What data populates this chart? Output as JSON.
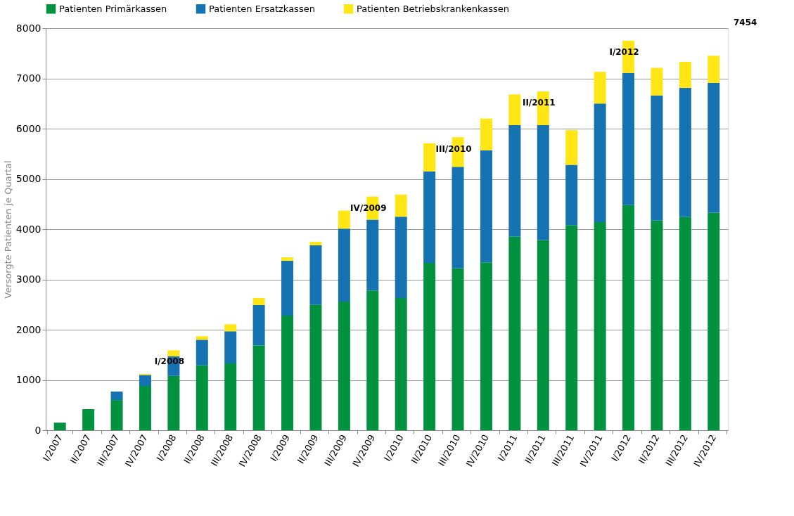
{
  "chart_data": {
    "type": "bar",
    "stacked": true,
    "ylabel": "Versorgte Patienten je Quartal",
    "categories": [
      "I/2007",
      "II/2007",
      "III/2007",
      "IV/2007",
      "I/2008",
      "II/2008",
      "III/2008",
      "IV/2008",
      "I/2009",
      "II/2009",
      "III/2009",
      "IV/2009",
      "I/2010",
      "II/2010",
      "III/2010",
      "IV/2010",
      "I/2011",
      "II/2011",
      "III/2011",
      "IV/2011",
      "I/2012",
      "II/2012",
      "III/2012",
      "IV/2012"
    ],
    "series": [
      {
        "name": "Patienten Primärkassen",
        "color": "#00923f",
        "values": [
          150,
          420,
          600,
          880,
          1080,
          1290,
          1330,
          1690,
          2280,
          2500,
          2560,
          2780,
          2630,
          3330,
          3220,
          3340,
          3850,
          3780,
          4080,
          4140,
          4480,
          4170,
          4240,
          4330
        ]
      },
      {
        "name": "Patienten Ersatzkassen",
        "color": "#1473b0",
        "values": [
          null,
          null,
          170,
          220,
          390,
          510,
          640,
          800,
          1090,
          1180,
          1450,
          1410,
          1620,
          1820,
          2020,
          2230,
          2220,
          2290,
          1200,
          2360,
          2630,
          2490,
          2570,
          2580
        ]
      },
      {
        "name": "Patienten Betriebskrankenkassen",
        "color": "#ffe614",
        "values": [
          null,
          null,
          null,
          20,
          120,
          70,
          140,
          140,
          70,
          70,
          360,
          460,
          440,
          560,
          590,
          630,
          610,
          670,
          690,
          630,
          640,
          550,
          520,
          540
        ]
      }
    ],
    "ylim": [
      0,
      8000
    ],
    "yticks": [
      0,
      1000,
      2000,
      3000,
      4000,
      5000,
      6000,
      7000,
      8000
    ],
    "grid": "y",
    "legend": "top left",
    "annotations": [
      {
        "text": "I/2008",
        "x": "I/2008",
        "y": 1590
      },
      {
        "text": "IV/2009",
        "x": "IV/2009",
        "y": 4650
      },
      {
        "text": "III/2010",
        "x": "III/2010",
        "y": 5820
      },
      {
        "text": "II/2011",
        "x": "II/2011",
        "y": 6740
      },
      {
        "text": "I/2012",
        "x": "I/2012",
        "y": 7750
      },
      "7454"
    ]
  }
}
